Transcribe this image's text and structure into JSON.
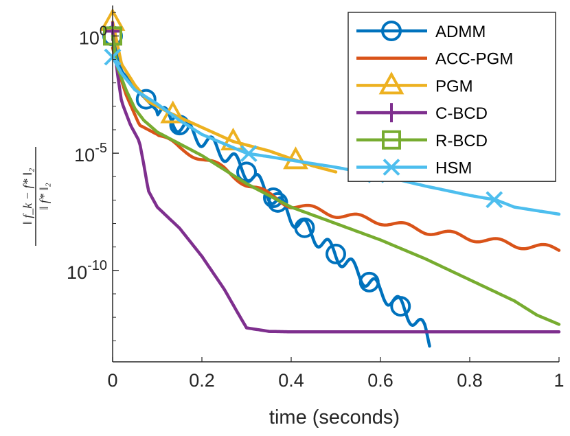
{
  "chart_data": {
    "type": "line",
    "title": "",
    "xlabel": "time (seconds)",
    "ylabel": "||f_k − f*||_2 / ||f*||_2",
    "ylabel_numerator": "‖ f_k − f* ‖₂",
    "ylabel_denominator": "‖ f* ‖₂",
    "yscale": "log",
    "xlim": [
      0,
      1
    ],
    "ylim_log10": [
      -13.9,
      1.3
    ],
    "xticks": [
      0,
      0.2,
      0.4,
      0.6,
      0.8,
      1
    ],
    "xtick_labels": [
      "0",
      "0.2",
      "0.4",
      "0.6",
      "0.8",
      "1"
    ],
    "yticks_log10": [
      0,
      -5,
      -10
    ],
    "ytick_labels": [
      {
        "base": "10",
        "exp": "0"
      },
      {
        "base": "10",
        "exp": "-5"
      },
      {
        "base": "10",
        "exp": "-10"
      }
    ],
    "legend_position": "top-right",
    "series": [
      {
        "name": "ADMM",
        "color": "#0072BD",
        "marker": "circle",
        "oscillating": true,
        "x": [
          0,
          0.02,
          0.05,
          0.1,
          0.15,
          0.2,
          0.25,
          0.3,
          0.35,
          0.4,
          0.45,
          0.5,
          0.55,
          0.6,
          0.65,
          0.7,
          0.71
        ],
        "log10_y": [
          0,
          -1.5,
          -2.2,
          -3.2,
          -3.8,
          -4.4,
          -5.0,
          -5.8,
          -6.7,
          -7.7,
          -8.5,
          -9.3,
          -10.1,
          -10.9,
          -11.6,
          -12.6,
          -13.1
        ],
        "markers_x": [
          0,
          0.075,
          0.15,
          0.3,
          0.36,
          0.37,
          0.43,
          0.5,
          0.575,
          0.645
        ]
      },
      {
        "name": "ACC-PGM",
        "color": "#D95319",
        "marker": "none",
        "oscillating": true,
        "x": [
          0,
          0.01,
          0.03,
          0.06,
          0.1,
          0.15,
          0.2,
          0.25,
          0.3,
          0.35,
          0.4,
          0.5,
          0.6,
          0.7,
          0.8,
          0.9,
          1.0
        ],
        "log10_y": [
          -0.5,
          -1.3,
          -2.5,
          -3.8,
          -4.2,
          -4.8,
          -5.2,
          -5.7,
          -6.3,
          -6.8,
          -7.2,
          -7.6,
          -7.9,
          -8.3,
          -8.6,
          -8.9,
          -9.1
        ]
      },
      {
        "name": "PGM",
        "color": "#EDB120",
        "marker": "triangle",
        "oscillating": false,
        "x": [
          0,
          0.02,
          0.05,
          0.08,
          0.13,
          0.2,
          0.27,
          0.35,
          0.41,
          0.45,
          0.5
        ],
        "log10_y": [
          0.6,
          -1.2,
          -2.1,
          -2.8,
          -3.3,
          -3.9,
          -4.5,
          -4.9,
          -5.3,
          -5.55,
          -5.8
        ],
        "markers_x": [
          0,
          0.135,
          0.27,
          0.41
        ]
      },
      {
        "name": "C-BCD",
        "color": "#7E2F8E",
        "marker": "plus",
        "oscillating": false,
        "x": [
          0,
          0.01,
          0.02,
          0.04,
          0.06,
          0.07,
          0.08,
          0.1,
          0.15,
          0.2,
          0.25,
          0.28,
          0.3,
          0.35,
          0.4,
          0.5,
          0.6,
          0.8,
          1.0
        ],
        "log10_y": [
          0.2,
          -1.5,
          -2.8,
          -3.8,
          -4.5,
          -5.5,
          -6.6,
          -7.3,
          -8.2,
          -9.4,
          -10.8,
          -11.8,
          -12.45,
          -12.6,
          -12.62,
          -12.62,
          -12.62,
          -12.62,
          -12.62
        ],
        "markers_x": [
          0
        ]
      },
      {
        "name": "R-BCD",
        "color": "#77AC30",
        "marker": "square",
        "oscillating": false,
        "x": [
          0,
          0.01,
          0.03,
          0.05,
          0.07,
          0.1,
          0.15,
          0.2,
          0.3,
          0.4,
          0.5,
          0.6,
          0.7,
          0.8,
          0.9,
          0.95,
          1.0
        ],
        "log10_y": [
          0,
          -1.3,
          -2.3,
          -3.1,
          -3.6,
          -4.1,
          -4.6,
          -5.1,
          -6.3,
          -7.3,
          -8.0,
          -8.7,
          -9.5,
          -10.4,
          -11.3,
          -11.9,
          -12.3
        ],
        "markers_x": [
          0
        ]
      },
      {
        "name": "HSM",
        "color": "#4DBEEE",
        "marker": "x",
        "oscillating": false,
        "x": [
          0,
          0.02,
          0.05,
          0.1,
          0.15,
          0.2,
          0.25,
          0.3,
          0.4,
          0.5,
          0.6,
          0.7,
          0.8,
          0.86,
          0.9,
          1.0
        ],
        "log10_y": [
          -0.9,
          -1.6,
          -2.3,
          -2.9,
          -3.6,
          -4.2,
          -4.6,
          -5.0,
          -5.3,
          -5.6,
          -5.95,
          -6.4,
          -6.8,
          -7.0,
          -7.3,
          -7.6
        ],
        "markers_x": [
          0,
          0.305,
          0.59,
          0.855
        ]
      }
    ]
  }
}
